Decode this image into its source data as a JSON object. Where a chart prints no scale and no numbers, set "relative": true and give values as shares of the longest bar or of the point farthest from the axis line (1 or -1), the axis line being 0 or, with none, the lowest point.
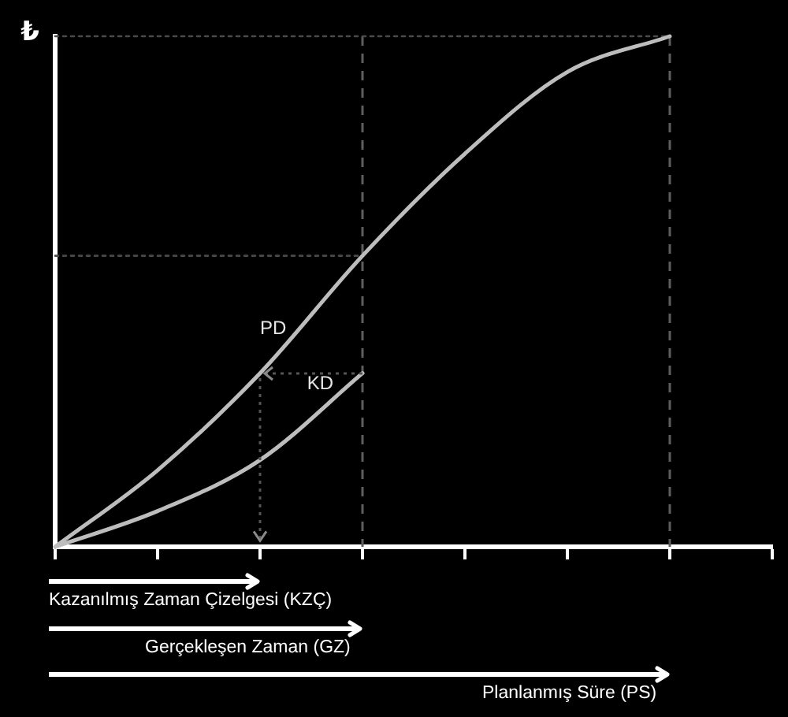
{
  "chart_data": {
    "type": "line",
    "ylabel": "₺",
    "relative": true,
    "legend": false,
    "grid": false,
    "marker": "none",
    "line_style": "solid",
    "tick_labels": false,
    "categories": [
      null,
      null,
      null,
      null,
      null,
      null,
      null,
      null
    ],
    "series": [
      {
        "name": "PD",
        "color": "#bdbdbd",
        "values": [
          0,
          0.15,
          0.34,
          0.57,
          0.77,
          0.93,
          1,
          null
        ]
      },
      {
        "name": "KD",
        "color": "#bdbdbd",
        "values": [
          0,
          0.07,
          0.17,
          0.34,
          null,
          null,
          null,
          null
        ]
      },
      {
        "color": "#4a4a4a",
        "line_style": "dotted",
        "values": [
          1,
          1,
          1,
          1,
          1,
          1,
          1,
          null
        ]
      },
      {
        "color": "#4a4a4a",
        "line_style": "dotted",
        "values": [
          0.57,
          0.57,
          0.57,
          0.57,
          null,
          null,
          null,
          null
        ]
      }
    ],
    "annotations": [
      "Kazanılmış Zaman Çizelgesi (KZÇ)",
      "Gerçekleşen Zaman (GZ)",
      "Planlanmış Süre (PS)"
    ]
  }
}
